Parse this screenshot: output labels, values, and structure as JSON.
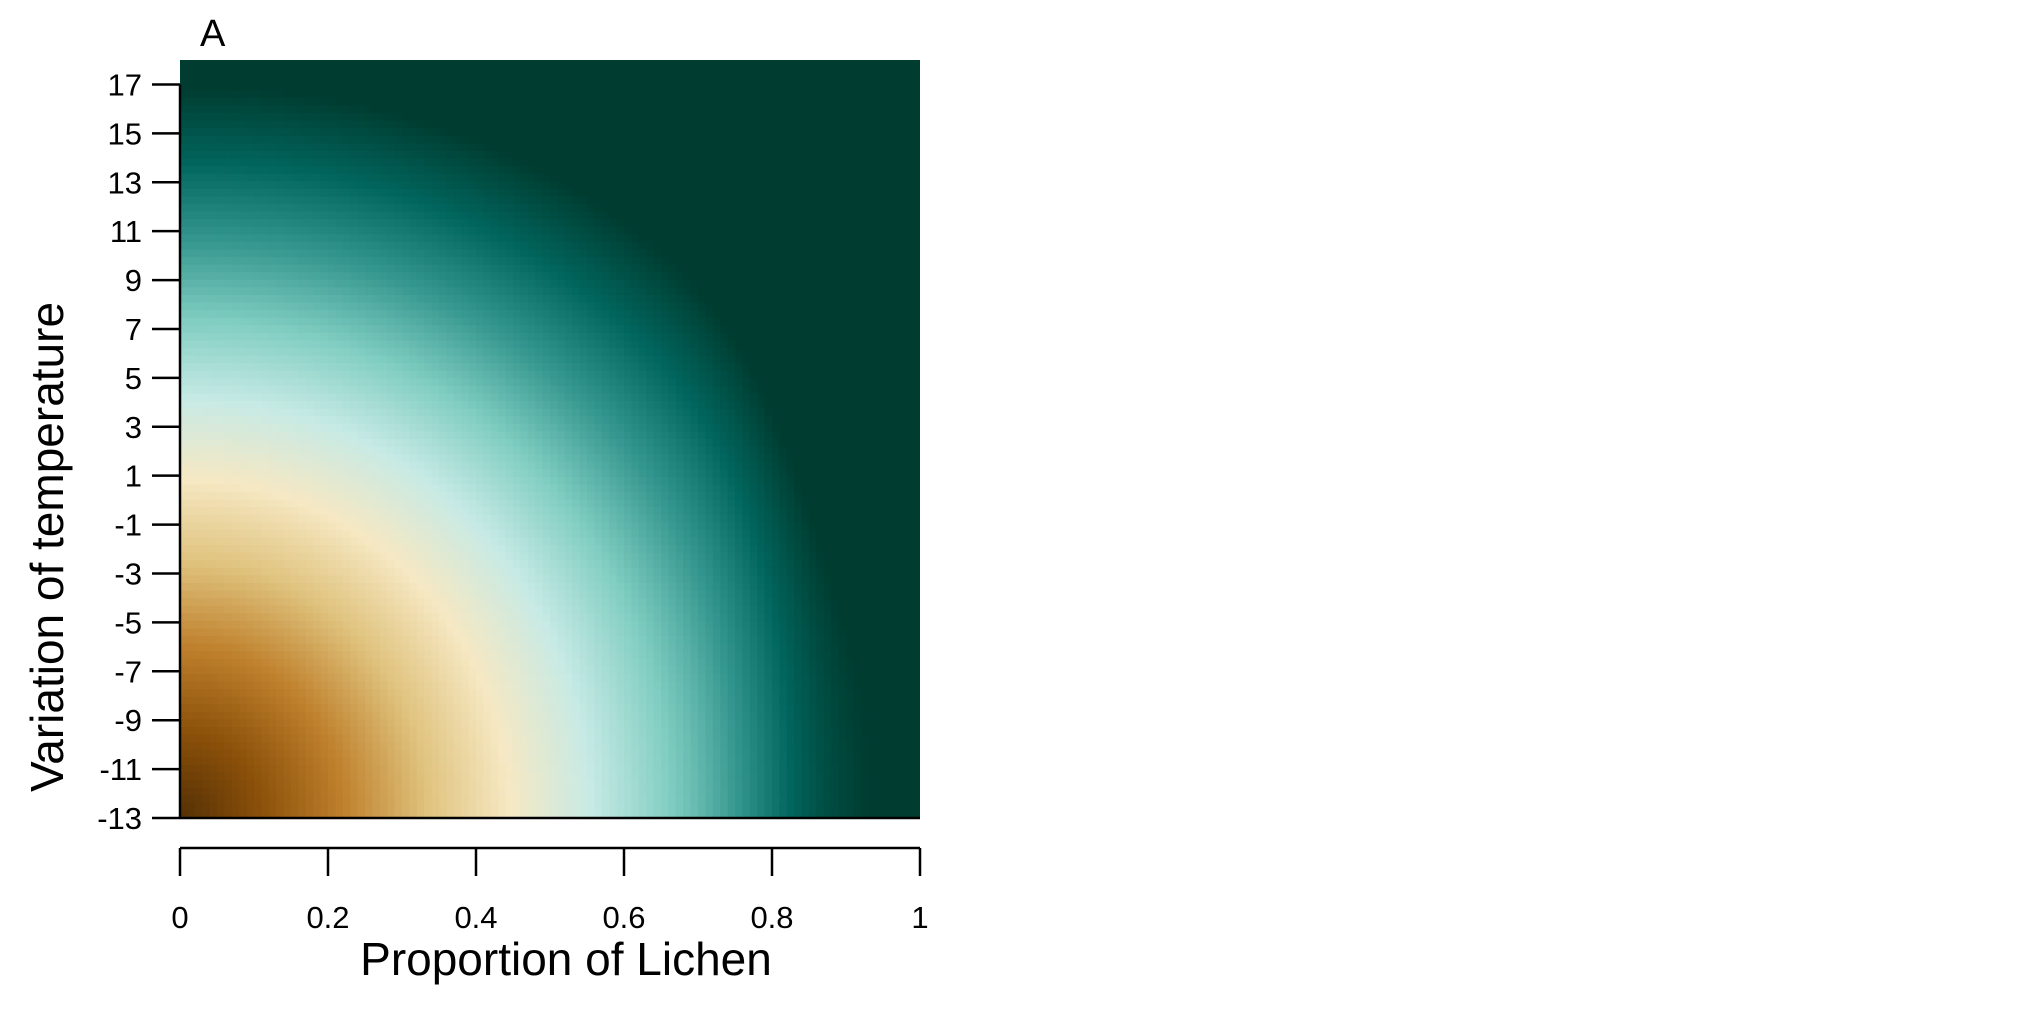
{
  "chart_data": {
    "type": "heatmap",
    "panel_label": "A",
    "xlabel": "Proportion of Lichen",
    "ylabel": "Variation of temperature",
    "xlim": [
      0,
      1
    ],
    "ylim": [
      -13,
      18
    ],
    "x_ticks": [
      0,
      0.2,
      0.4,
      0.6,
      0.8,
      1
    ],
    "x_tick_labels": [
      "0",
      "0.2",
      "0.4",
      "0.6",
      "0.8",
      "1"
    ],
    "y_ticks": [
      -13,
      -11,
      -9,
      -7,
      -5,
      -3,
      -1,
      1,
      3,
      5,
      7,
      9,
      11,
      13,
      15,
      17
    ],
    "y_tick_labels": [
      "-13",
      "-11",
      "-9",
      "-7",
      "-5",
      "-3",
      "-1",
      "1",
      "3",
      "5",
      "7",
      "9",
      "11",
      "13",
      "15",
      "17"
    ],
    "colormap": [
      "#543005",
      "#8c510a",
      "#bf812d",
      "#dfc27d",
      "#f6e8c3",
      "#c7eae5",
      "#80cdc1",
      "#35978f",
      "#01665e",
      "#003c30"
    ],
    "grid": false,
    "legend": "none"
  }
}
